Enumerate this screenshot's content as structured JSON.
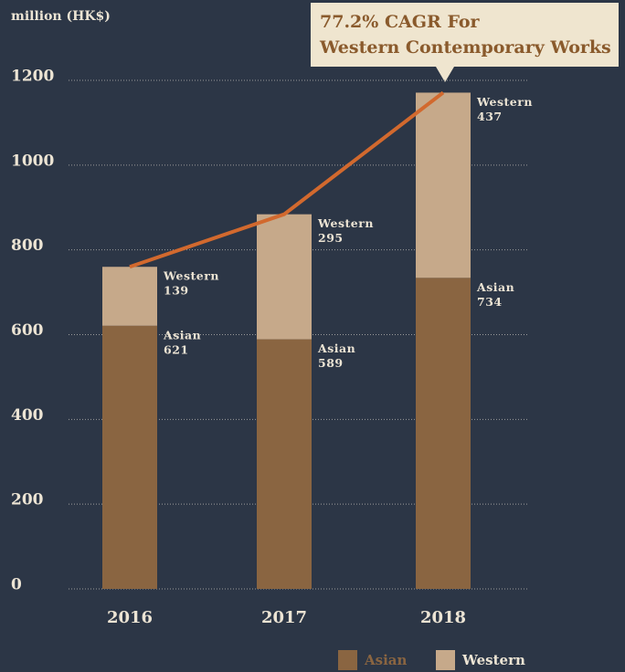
{
  "chart_data": {
    "type": "stacked_bar",
    "ylabel": "million (HK$)",
    "annotation": [
      "77.2% CAGR For",
      "Western Contemporary Works"
    ],
    "categories": [
      "2016",
      "2017",
      "2018"
    ],
    "series": [
      {
        "name": "Asian",
        "color": "#8a6541",
        "values": [
          621,
          589,
          734
        ]
      },
      {
        "name": "Western",
        "color": "#c6a98a",
        "values": [
          139,
          295,
          437
        ]
      }
    ],
    "line_color": "#d2692e",
    "ylim": [
      0,
      1200
    ],
    "yticks": [
      0,
      200,
      400,
      600,
      800,
      1000,
      1200
    ],
    "grid": true,
    "legend": "bottom-right"
  }
}
